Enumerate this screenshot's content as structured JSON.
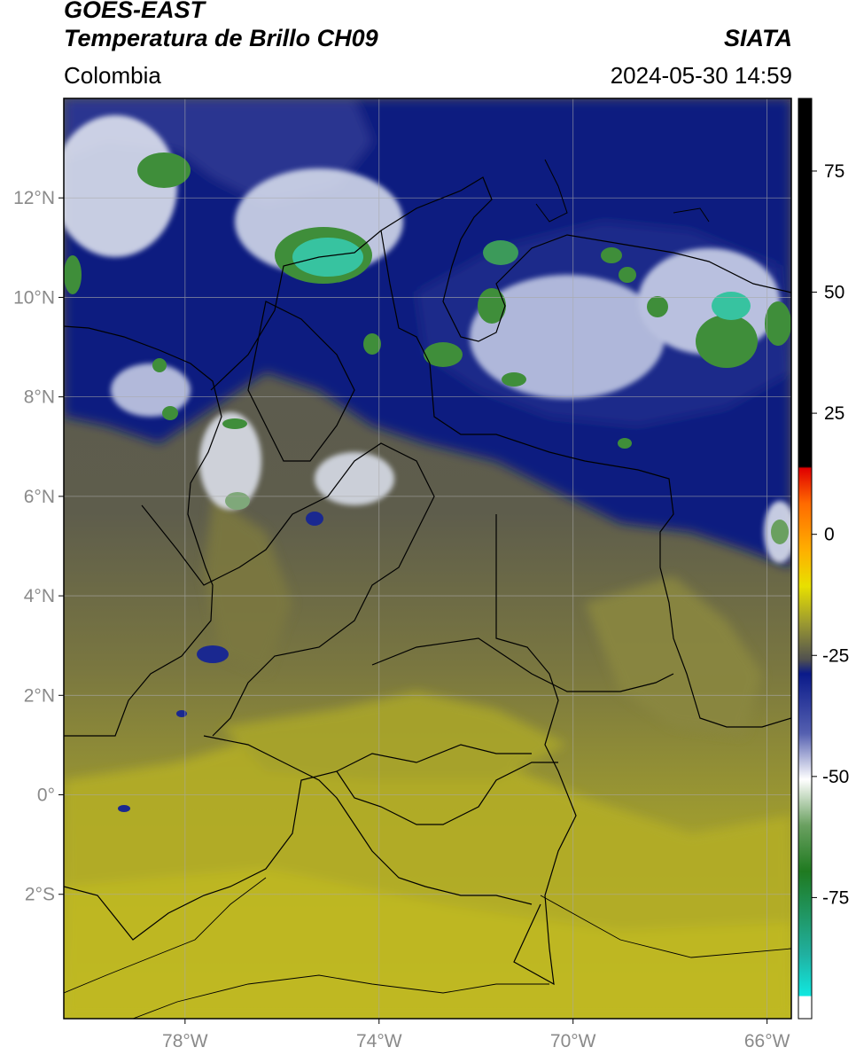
{
  "header": {
    "satellite": "GOES-EAST",
    "product": "Temperatura de Brillo CH09",
    "region": "Colombia",
    "source": "SIATA",
    "datetime": "2024-05-30 14:59"
  },
  "map": {
    "lon_range": [
      -80.5,
      -65.5
    ],
    "lat_range": [
      -4.5,
      14.0
    ],
    "lat_ticks": [
      {
        "value": 12,
        "label": "12°N"
      },
      {
        "value": 10,
        "label": "10°N"
      },
      {
        "value": 8,
        "label": "8°N"
      },
      {
        "value": 6,
        "label": "6°N"
      },
      {
        "value": 4,
        "label": "4°N"
      },
      {
        "value": 2,
        "label": "2°N"
      },
      {
        "value": 0,
        "label": "0°"
      },
      {
        "value": -2,
        "label": "2°S"
      }
    ],
    "lon_ticks": [
      {
        "value": -78,
        "label": "78°W"
      },
      {
        "value": -74,
        "label": "74°W"
      },
      {
        "value": -70,
        "label": "70°W"
      },
      {
        "value": -66,
        "label": "66°W"
      }
    ],
    "colors": {
      "warm_surface": "#bdb624",
      "mid_surface": "#6e6d4a",
      "cool_gray": "#555555",
      "cloud_blue": "#0d1a7e",
      "cloud_white": "#eef2f6",
      "cold_green": "#3d8c3a",
      "coldest_teal": "#35c9a5",
      "grid": "#b0b0b0",
      "borders": "#000000"
    }
  },
  "colorbar": {
    "ticks": [
      {
        "value": 75,
        "label": "75"
      },
      {
        "value": 50,
        "label": "50"
      },
      {
        "value": 25,
        "label": "25"
      },
      {
        "value": 0,
        "label": "0"
      },
      {
        "value": -25,
        "label": "-25"
      },
      {
        "value": -50,
        "label": "-50"
      },
      {
        "value": -75,
        "label": "-75"
      }
    ],
    "range": [
      -100,
      90
    ]
  }
}
